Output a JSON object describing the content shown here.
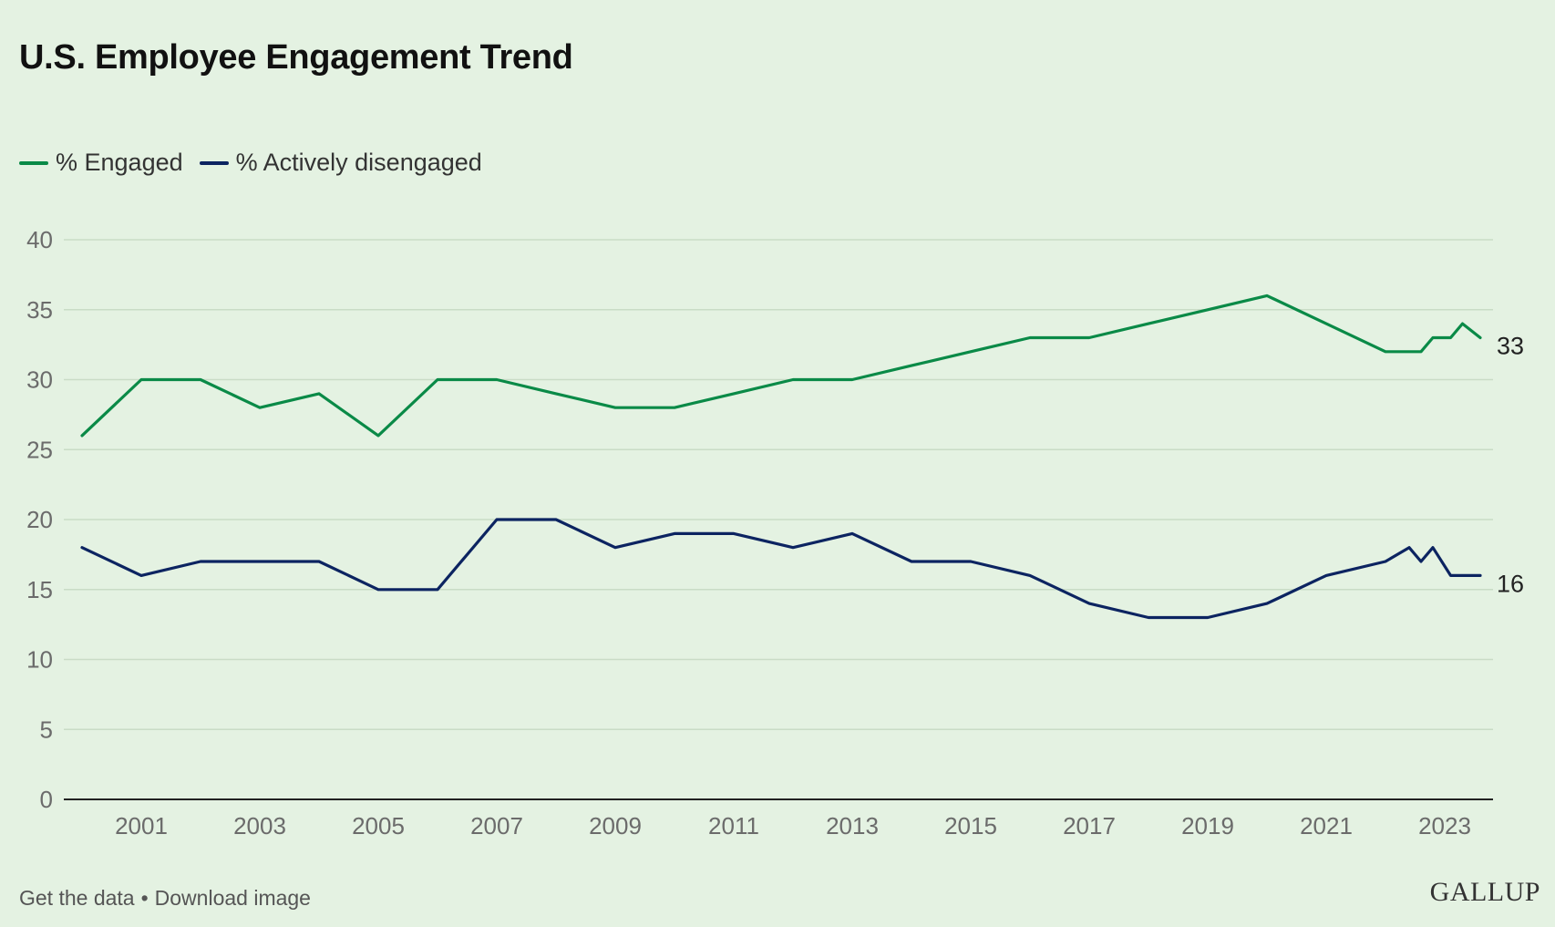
{
  "header": {
    "title": "U.S. Employee Engagement Trend"
  },
  "legend": {
    "items": [
      {
        "label": "% Engaged",
        "color": "#0a8a47"
      },
      {
        "label": "% Actively disengaged",
        "color": "#0c2461"
      }
    ]
  },
  "footer": {
    "get_data_label": "Get the data",
    "separator": "•",
    "download_label": "Download image",
    "brand": "GALLUP"
  },
  "chart_data": {
    "type": "line",
    "title": "U.S. Employee Engagement Trend",
    "xlabel": "",
    "ylabel": "",
    "ylim": [
      0,
      40
    ],
    "xlim": [
      2000,
      2023.6
    ],
    "yticks": [
      0,
      5,
      10,
      15,
      20,
      25,
      30,
      35,
      40
    ],
    "xticks": [
      2001,
      2003,
      2005,
      2007,
      2009,
      2011,
      2013,
      2015,
      2017,
      2019,
      2021,
      2023
    ],
    "grid": true,
    "legend_position": "top-left",
    "series": [
      {
        "name": "% Engaged",
        "color": "#0a8a47",
        "end_label": "33",
        "points": [
          [
            2000,
            26
          ],
          [
            2001,
            30
          ],
          [
            2002,
            30
          ],
          [
            2003,
            28
          ],
          [
            2004,
            29
          ],
          [
            2005,
            26
          ],
          [
            2006,
            30
          ],
          [
            2007,
            30
          ],
          [
            2008,
            29
          ],
          [
            2009,
            28
          ],
          [
            2010,
            28
          ],
          [
            2011,
            29
          ],
          [
            2012,
            30
          ],
          [
            2013,
            30
          ],
          [
            2014,
            31
          ],
          [
            2015,
            32
          ],
          [
            2016,
            33
          ],
          [
            2017,
            33
          ],
          [
            2018,
            34
          ],
          [
            2019,
            35
          ],
          [
            2020,
            36
          ],
          [
            2021,
            34
          ],
          [
            2022,
            32
          ],
          [
            2022.6,
            32
          ],
          [
            2022.8,
            33
          ],
          [
            2023.1,
            33
          ],
          [
            2023.3,
            34
          ],
          [
            2023.6,
            33
          ]
        ]
      },
      {
        "name": "% Actively disengaged",
        "color": "#0c2461",
        "end_label": "16",
        "points": [
          [
            2000,
            18
          ],
          [
            2001,
            16
          ],
          [
            2002,
            17
          ],
          [
            2003,
            17
          ],
          [
            2004,
            17
          ],
          [
            2005,
            15
          ],
          [
            2006,
            15
          ],
          [
            2007,
            20
          ],
          [
            2008,
            20
          ],
          [
            2009,
            18
          ],
          [
            2010,
            19
          ],
          [
            2011,
            19
          ],
          [
            2012,
            18
          ],
          [
            2013,
            19
          ],
          [
            2014,
            17
          ],
          [
            2015,
            17
          ],
          [
            2016,
            16
          ],
          [
            2017,
            14
          ],
          [
            2018,
            13
          ],
          [
            2019,
            13
          ],
          [
            2020,
            14
          ],
          [
            2021,
            16
          ],
          [
            2022,
            17
          ],
          [
            2022.4,
            18
          ],
          [
            2022.6,
            17
          ],
          [
            2022.8,
            18
          ],
          [
            2023.1,
            16
          ],
          [
            2023.6,
            16
          ]
        ]
      }
    ]
  }
}
